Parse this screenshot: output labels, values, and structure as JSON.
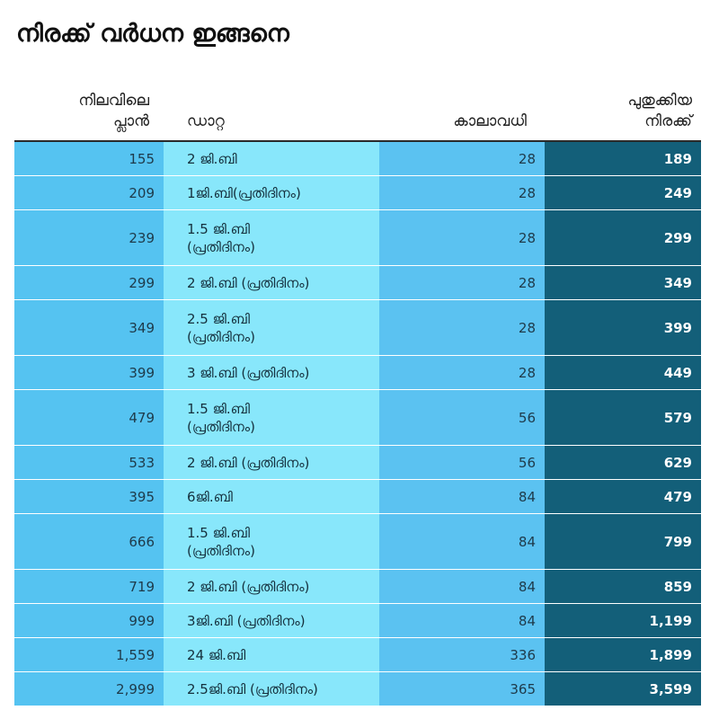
{
  "title": "നിരക്ക് വർധന ഇങ്ങനെ",
  "chart_data": {
    "type": "table",
    "columns": [
      "നിലവിലെ\nപ്ലാൻ",
      "ഡാറ്റ",
      "കാലാവധി",
      "പുതുക്കിയ\nനിരക്ക്"
    ],
    "rows": [
      {
        "current": "155",
        "data": "2 ജി.ബി",
        "validity": "28",
        "new": "189"
      },
      {
        "current": "209",
        "data": "1ജി.ബി(പ്രതിദിനം)",
        "validity": "28",
        "new": "249"
      },
      {
        "current": "239",
        "data": "1.5 ജി.ബി\n(പ്രതിദിനം)",
        "validity": "28",
        "new": "299"
      },
      {
        "current": "299",
        "data": "2 ജി.ബി (പ്രതിദിനം)",
        "validity": "28",
        "new": "349"
      },
      {
        "current": "349",
        "data": "2.5 ജി.ബി\n(പ്രതിദിനം)",
        "validity": "28",
        "new": "399"
      },
      {
        "current": "399",
        "data": "3 ജി.ബി (പ്രതിദിനം)",
        "validity": "28",
        "new": "449"
      },
      {
        "current": "479",
        "data": "1.5 ജി.ബി\n(പ്രതിദിനം)",
        "validity": "56",
        "new": "579"
      },
      {
        "current": "533",
        "data": "2 ജി.ബി (പ്രതിദിനം)",
        "validity": "56",
        "new": "629"
      },
      {
        "current": "395",
        "data": "6ജി.ബി",
        "validity": "84",
        "new": "479"
      },
      {
        "current": "666",
        "data": "1.5 ജി.ബി\n(പ്രതിദിനം)",
        "validity": "84",
        "new": "799"
      },
      {
        "current": "719",
        "data": "2 ജി.ബി (പ്രതിദിനം)",
        "validity": "84",
        "new": "859"
      },
      {
        "current": "999",
        "data": "3ജി.ബി (പ്രതിദിനം)",
        "validity": "84",
        "new": "1,199"
      },
      {
        "current": "1,559",
        "data": "24 ജി.ബി",
        "validity": "336",
        "new": "1,899"
      },
      {
        "current": "2,999",
        "data": "2.5ജി.ബി (പ്രതിദിനം)",
        "validity": "365",
        "new": "3,599"
      }
    ]
  },
  "colors": {
    "current_col": "#55c3f1",
    "data_col": "#88e7fb",
    "validity_col": "#5bc2f1",
    "new_col": "#135f79"
  }
}
